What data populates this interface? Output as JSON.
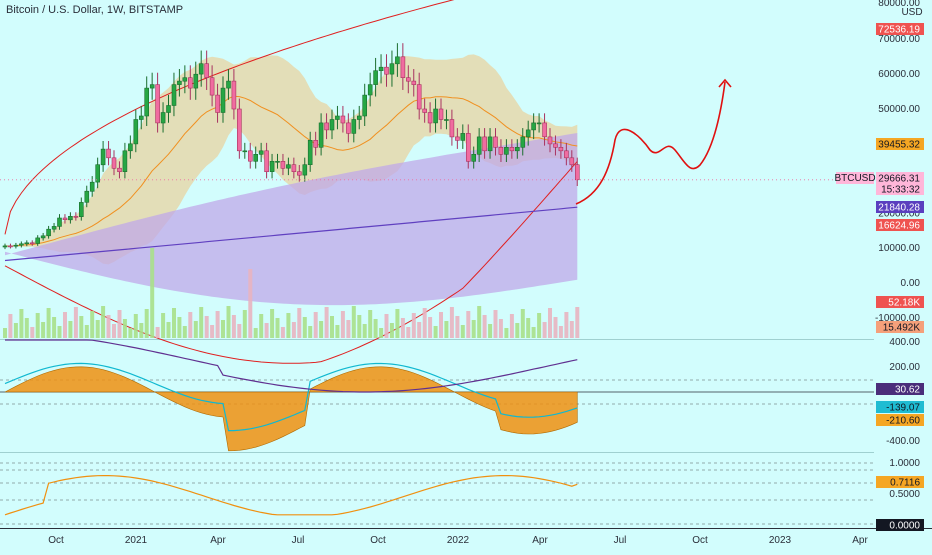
{
  "header": {
    "title": "Bitcoin / U.S. Dollar, 1W, BITSTAMP"
  },
  "colors": {
    "background": "#d2fdfd",
    "up_candle": "#26a644",
    "down_candle": "#f06ca0",
    "bb_fill": "#e8d3a0",
    "cloud_fill": "#c0a8e8",
    "ma_line": "#f09020",
    "sma_line": "#6040c0",
    "envelope_line": "#e02020",
    "cci_fill": "#f09010",
    "cci_line1": "#10b8d0",
    "cci_line2": "#603090",
    "osc_line": "#f09010",
    "forecast_line": "#e01010",
    "volume_up": "#a8e08a",
    "volume_down": "#e8b4c0"
  },
  "chart_data": [
    {
      "type": "candlestick",
      "title": "Bitcoin / U.S. Dollar, 1W, BITSTAMP",
      "symbol": "BTCUSD",
      "timeframe": "1W",
      "exchange": "BITSTAMP",
      "xlim": [
        "2020-09",
        "2023-05"
      ],
      "x_ticks": [
        "Oct",
        "2021",
        "Apr",
        "Jul",
        "Oct",
        "2022",
        "Apr",
        "Jul",
        "Oct",
        "2023",
        "Apr"
      ],
      "ylim": [
        -10000,
        80000
      ],
      "y_ticks": [
        "80000.00",
        "70000.00",
        "60000.00",
        "50000.00",
        "40000.00",
        "30000.00",
        "20000.00",
        "10000.00",
        "0.00",
        "-10000.00"
      ],
      "unit_label": "USD",
      "price_tags": [
        {
          "value": "72536.19",
          "color": "#ef5350"
        },
        {
          "value": "39455.32",
          "color": "#f5a623"
        },
        {
          "value": "29666.31",
          "color": "#ffb6d9"
        },
        {
          "value": "15:33:32",
          "color": "#ffb6d9"
        },
        {
          "value": "21840.28",
          "color": "#5a3fbf"
        },
        {
          "value": "16624.96",
          "color": "#ef5350"
        },
        {
          "value": "52.18K",
          "color": "#ef5350"
        },
        {
          "value": "15.492K",
          "color": "#f5a07a"
        }
      ],
      "symbol_tag": "BTCUSD",
      "weekly_close": [
        10700,
        10600,
        10900,
        11300,
        11600,
        11400,
        13000,
        13600,
        15500,
        16300,
        18700,
        18200,
        19200,
        19100,
        23200,
        26400,
        29000,
        34000,
        38500,
        36000,
        33000,
        32000,
        38000,
        40000,
        47000,
        48000,
        56000,
        57000,
        46000,
        49000,
        51000,
        57000,
        58000,
        59000,
        56000,
        60000,
        63000,
        59000,
        54000,
        49000,
        56000,
        58000,
        50000,
        38000,
        38000,
        35000,
        37000,
        38000,
        32000,
        35000,
        35000,
        33000,
        34000,
        32000,
        31000,
        34000,
        41000,
        39000,
        46000,
        44000,
        47000,
        48000,
        46000,
        43000,
        47000,
        48000,
        54000,
        57000,
        61000,
        62000,
        60000,
        63000,
        65000,
        59000,
        58000,
        57000,
        50000,
        49000,
        46000,
        50000,
        47000,
        47000,
        42000,
        41000,
        43000,
        35000,
        37000,
        42000,
        38000,
        42000,
        39000,
        37000,
        39000,
        38000,
        39000,
        42000,
        44000,
        46000,
        46000,
        42000,
        40000,
        39000,
        38000,
        36000,
        34000,
        29666
      ]
    },
    {
      "type": "line",
      "ylim": [
        -600,
        500
      ],
      "y_ticks": [
        "400.00",
        "200.00",
        "-400.00"
      ],
      "value_tags": [
        {
          "value": "30.62",
          "color": "#4a2d7a"
        },
        {
          "value": "-139.07",
          "color": "#1fbcd2"
        },
        {
          "value": "-210.60",
          "color": "#f5a623"
        }
      ],
      "levels": [
        100,
        -100,
        0
      ]
    },
    {
      "type": "line",
      "ylim": [
        0,
        1.1
      ],
      "y_ticks": [
        "1.0000",
        "0.5000",
        "0.0000"
      ],
      "value_tags": [
        {
          "value": "0.7116",
          "color": "#f5a623"
        },
        {
          "value": "0.0000",
          "color": "#131722"
        }
      ],
      "levels": [
        1.0,
        0.85,
        0.7,
        0.3
      ]
    }
  ]
}
